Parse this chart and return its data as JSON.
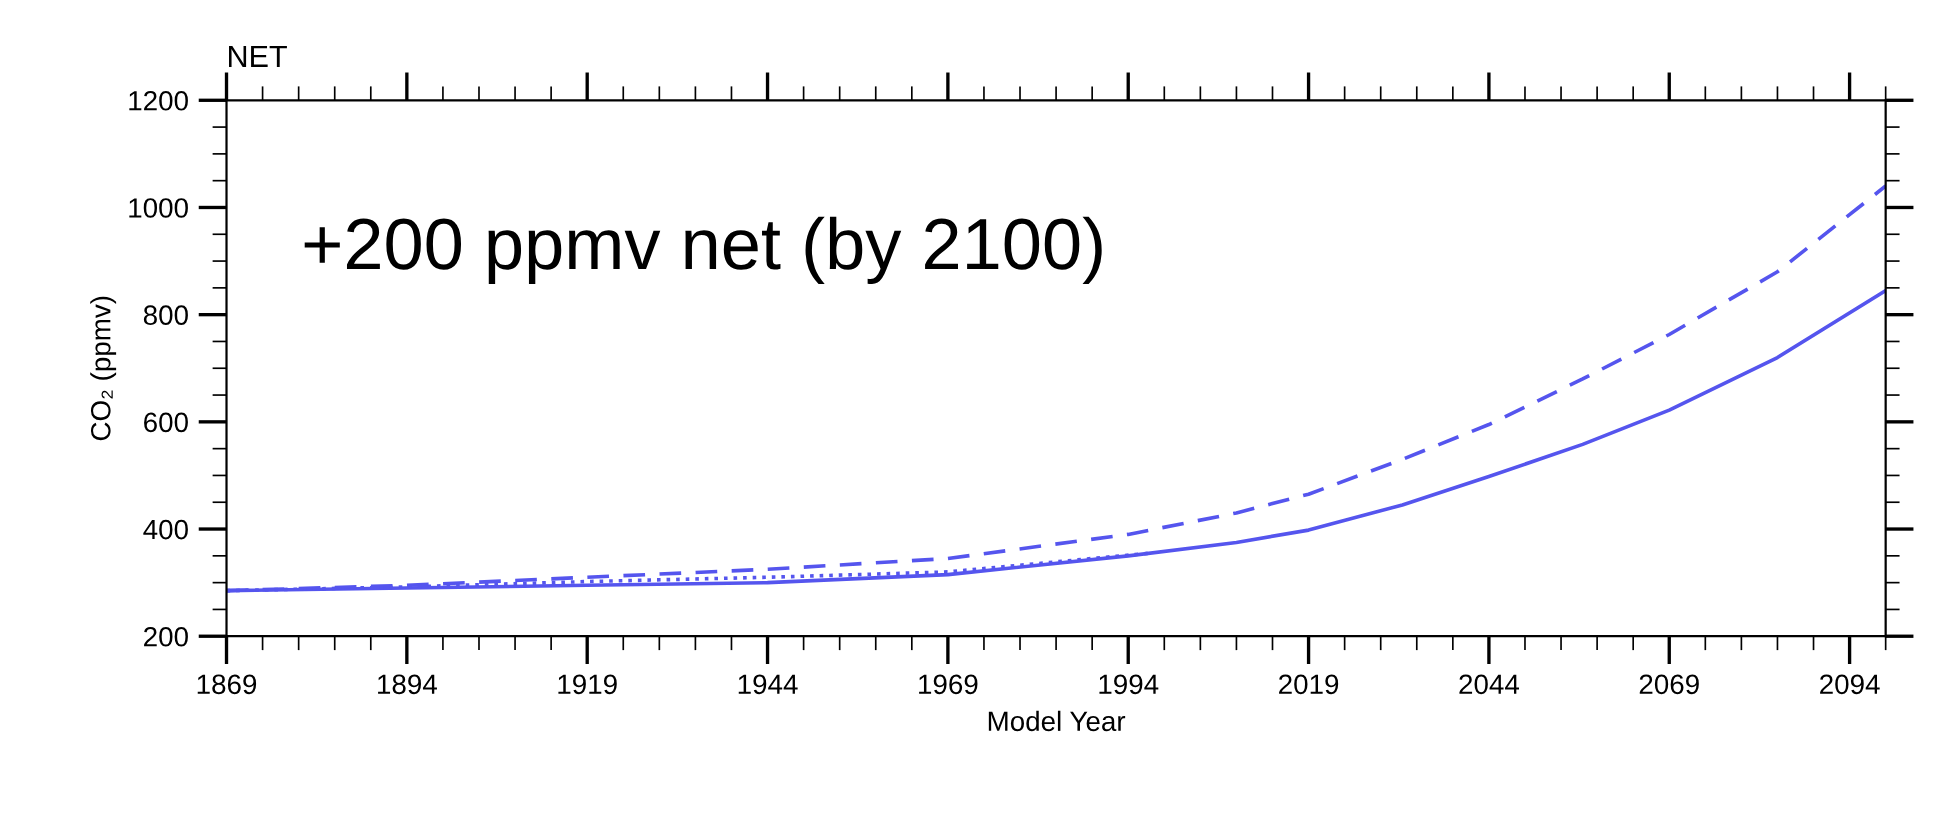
{
  "chart_data": {
    "type": "line",
    "title": "NET",
    "xlabel": "Model Year",
    "ylabel": "CO₂ (ppmv)",
    "xlim": [
      1869,
      2099
    ],
    "xticks": [
      1869,
      1894,
      1919,
      1944,
      1969,
      1994,
      2019,
      2044,
      2069,
      2094
    ],
    "ylim": [
      200,
      1200
    ],
    "yticks": [
      200,
      400,
      600,
      800,
      1000,
      1200
    ],
    "grid": false,
    "legend": false,
    "annotations": [
      "+200 ppmv net (by 2100)"
    ],
    "series": [
      {
        "color": "#5555ee",
        "line_style": "solid",
        "x": [
          1869,
          1894,
          1919,
          1944,
          1969,
          1994,
          2009,
          2019,
          2032,
          2044,
          2057,
          2069,
          2084,
          2099
        ],
        "values": [
          285,
          290,
          295,
          300,
          315,
          350,
          375,
          398,
          445,
          498,
          558,
          622,
          720,
          845
        ]
      },
      {
        "color": "#5555ee",
        "line_style": "dashed",
        "x": [
          1869,
          1894,
          1919,
          1944,
          1969,
          1994,
          2009,
          2019,
          2032,
          2044,
          2057,
          2069,
          2084,
          2099
        ],
        "values": [
          285,
          295,
          310,
          325,
          345,
          390,
          430,
          465,
          530,
          595,
          680,
          763,
          880,
          1040
        ]
      },
      {
        "color": "#5555ee",
        "line_style": "dotted",
        "x": [
          1869,
          1894,
          1919,
          1944,
          1969,
          1997
        ],
        "values": [
          285,
          292,
          302,
          310,
          320,
          355
        ]
      }
    ]
  }
}
